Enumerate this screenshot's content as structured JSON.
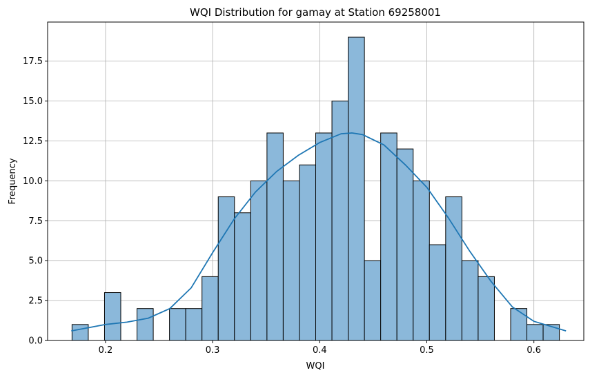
{
  "chart_data": {
    "type": "bar",
    "title": "WQI Distribution for gamay at Station 69258001",
    "xlabel": "WQI",
    "ylabel": "Frequency",
    "xlim": [
      0.1459,
      0.6466
    ],
    "ylim": [
      0,
      19.95
    ],
    "x_ticks": [
      0.2,
      0.3,
      0.4,
      0.5,
      0.6
    ],
    "x_tick_labels": [
      "0.2",
      "0.3",
      "0.4",
      "0.5",
      "0.6"
    ],
    "y_ticks": [
      0,
      2.5,
      5.0,
      7.5,
      10.0,
      12.5,
      15.0,
      17.5
    ],
    "y_tick_labels": [
      "0.0",
      "2.5",
      "5.0",
      "7.5",
      "10.0",
      "12.5",
      "15.0",
      "17.5"
    ],
    "grid": true,
    "bin_start": 0.1687,
    "bin_width": 0.01517,
    "values": [
      1,
      0,
      3,
      0,
      2,
      0,
      2,
      2,
      4,
      9,
      8,
      10,
      13,
      10,
      11,
      13,
      15,
      19,
      5,
      13,
      12,
      10,
      6,
      9,
      5,
      4,
      0,
      2,
      1,
      1
    ],
    "kde": {
      "x": [
        0.168,
        0.18,
        0.2,
        0.22,
        0.24,
        0.26,
        0.28,
        0.3,
        0.32,
        0.34,
        0.36,
        0.38,
        0.4,
        0.42,
        0.43,
        0.44,
        0.46,
        0.48,
        0.5,
        0.52,
        0.54,
        0.56,
        0.58,
        0.6,
        0.63
      ],
      "y": [
        0.6,
        0.75,
        1.0,
        1.15,
        1.4,
        2.0,
        3.3,
        5.5,
        7.6,
        9.3,
        10.6,
        11.6,
        12.4,
        12.95,
        13.0,
        12.9,
        12.25,
        11.0,
        9.6,
        7.7,
        5.6,
        3.7,
        2.1,
        1.2,
        0.6
      ]
    },
    "colors": {
      "bar_fill": "#8bb8da",
      "bar_edge": "#000000",
      "kde_line": "#1f77b4",
      "grid": "#b0b0b0"
    }
  }
}
